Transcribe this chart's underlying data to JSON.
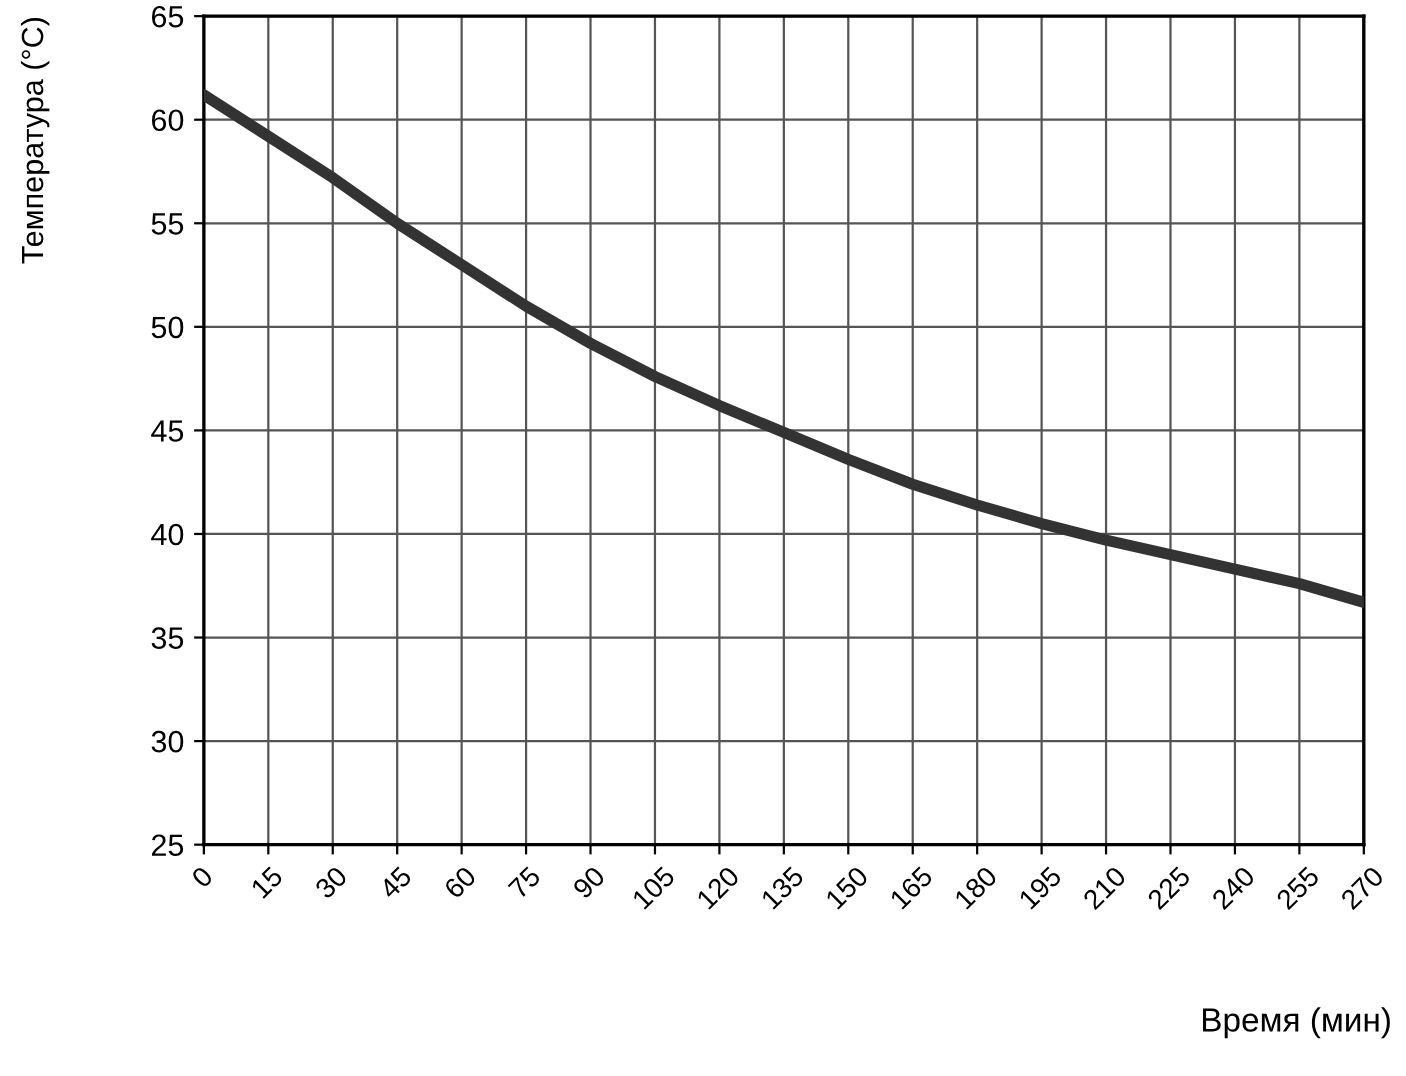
{
  "chart_data": {
    "type": "line",
    "xlabel": "Время (мин)",
    "ylabel": "Температура (°С)",
    "x": [
      0,
      15,
      30,
      45,
      60,
      75,
      90,
      105,
      120,
      135,
      150,
      165,
      180,
      195,
      210,
      225,
      240,
      255,
      270
    ],
    "series": [
      {
        "color": "#333333",
        "values": [
          61.2,
          59.2,
          57.2,
          55.0,
          53.0,
          51.0,
          49.2,
          47.6,
          46.2,
          44.9,
          43.6,
          42.4,
          41.4,
          40.5,
          39.7,
          39.0,
          38.3,
          37.6,
          36.7
        ]
      }
    ],
    "xlim": [
      0,
      270
    ],
    "ylim": [
      25,
      65
    ],
    "xticks": [
      0,
      15,
      30,
      45,
      60,
      75,
      90,
      105,
      120,
      135,
      150,
      165,
      180,
      195,
      210,
      225,
      240,
      255,
      270
    ],
    "yticks": [
      25,
      30,
      35,
      40,
      45,
      50,
      55,
      60,
      65
    ],
    "grid": true,
    "marker": "none",
    "line_style": "solid"
  }
}
